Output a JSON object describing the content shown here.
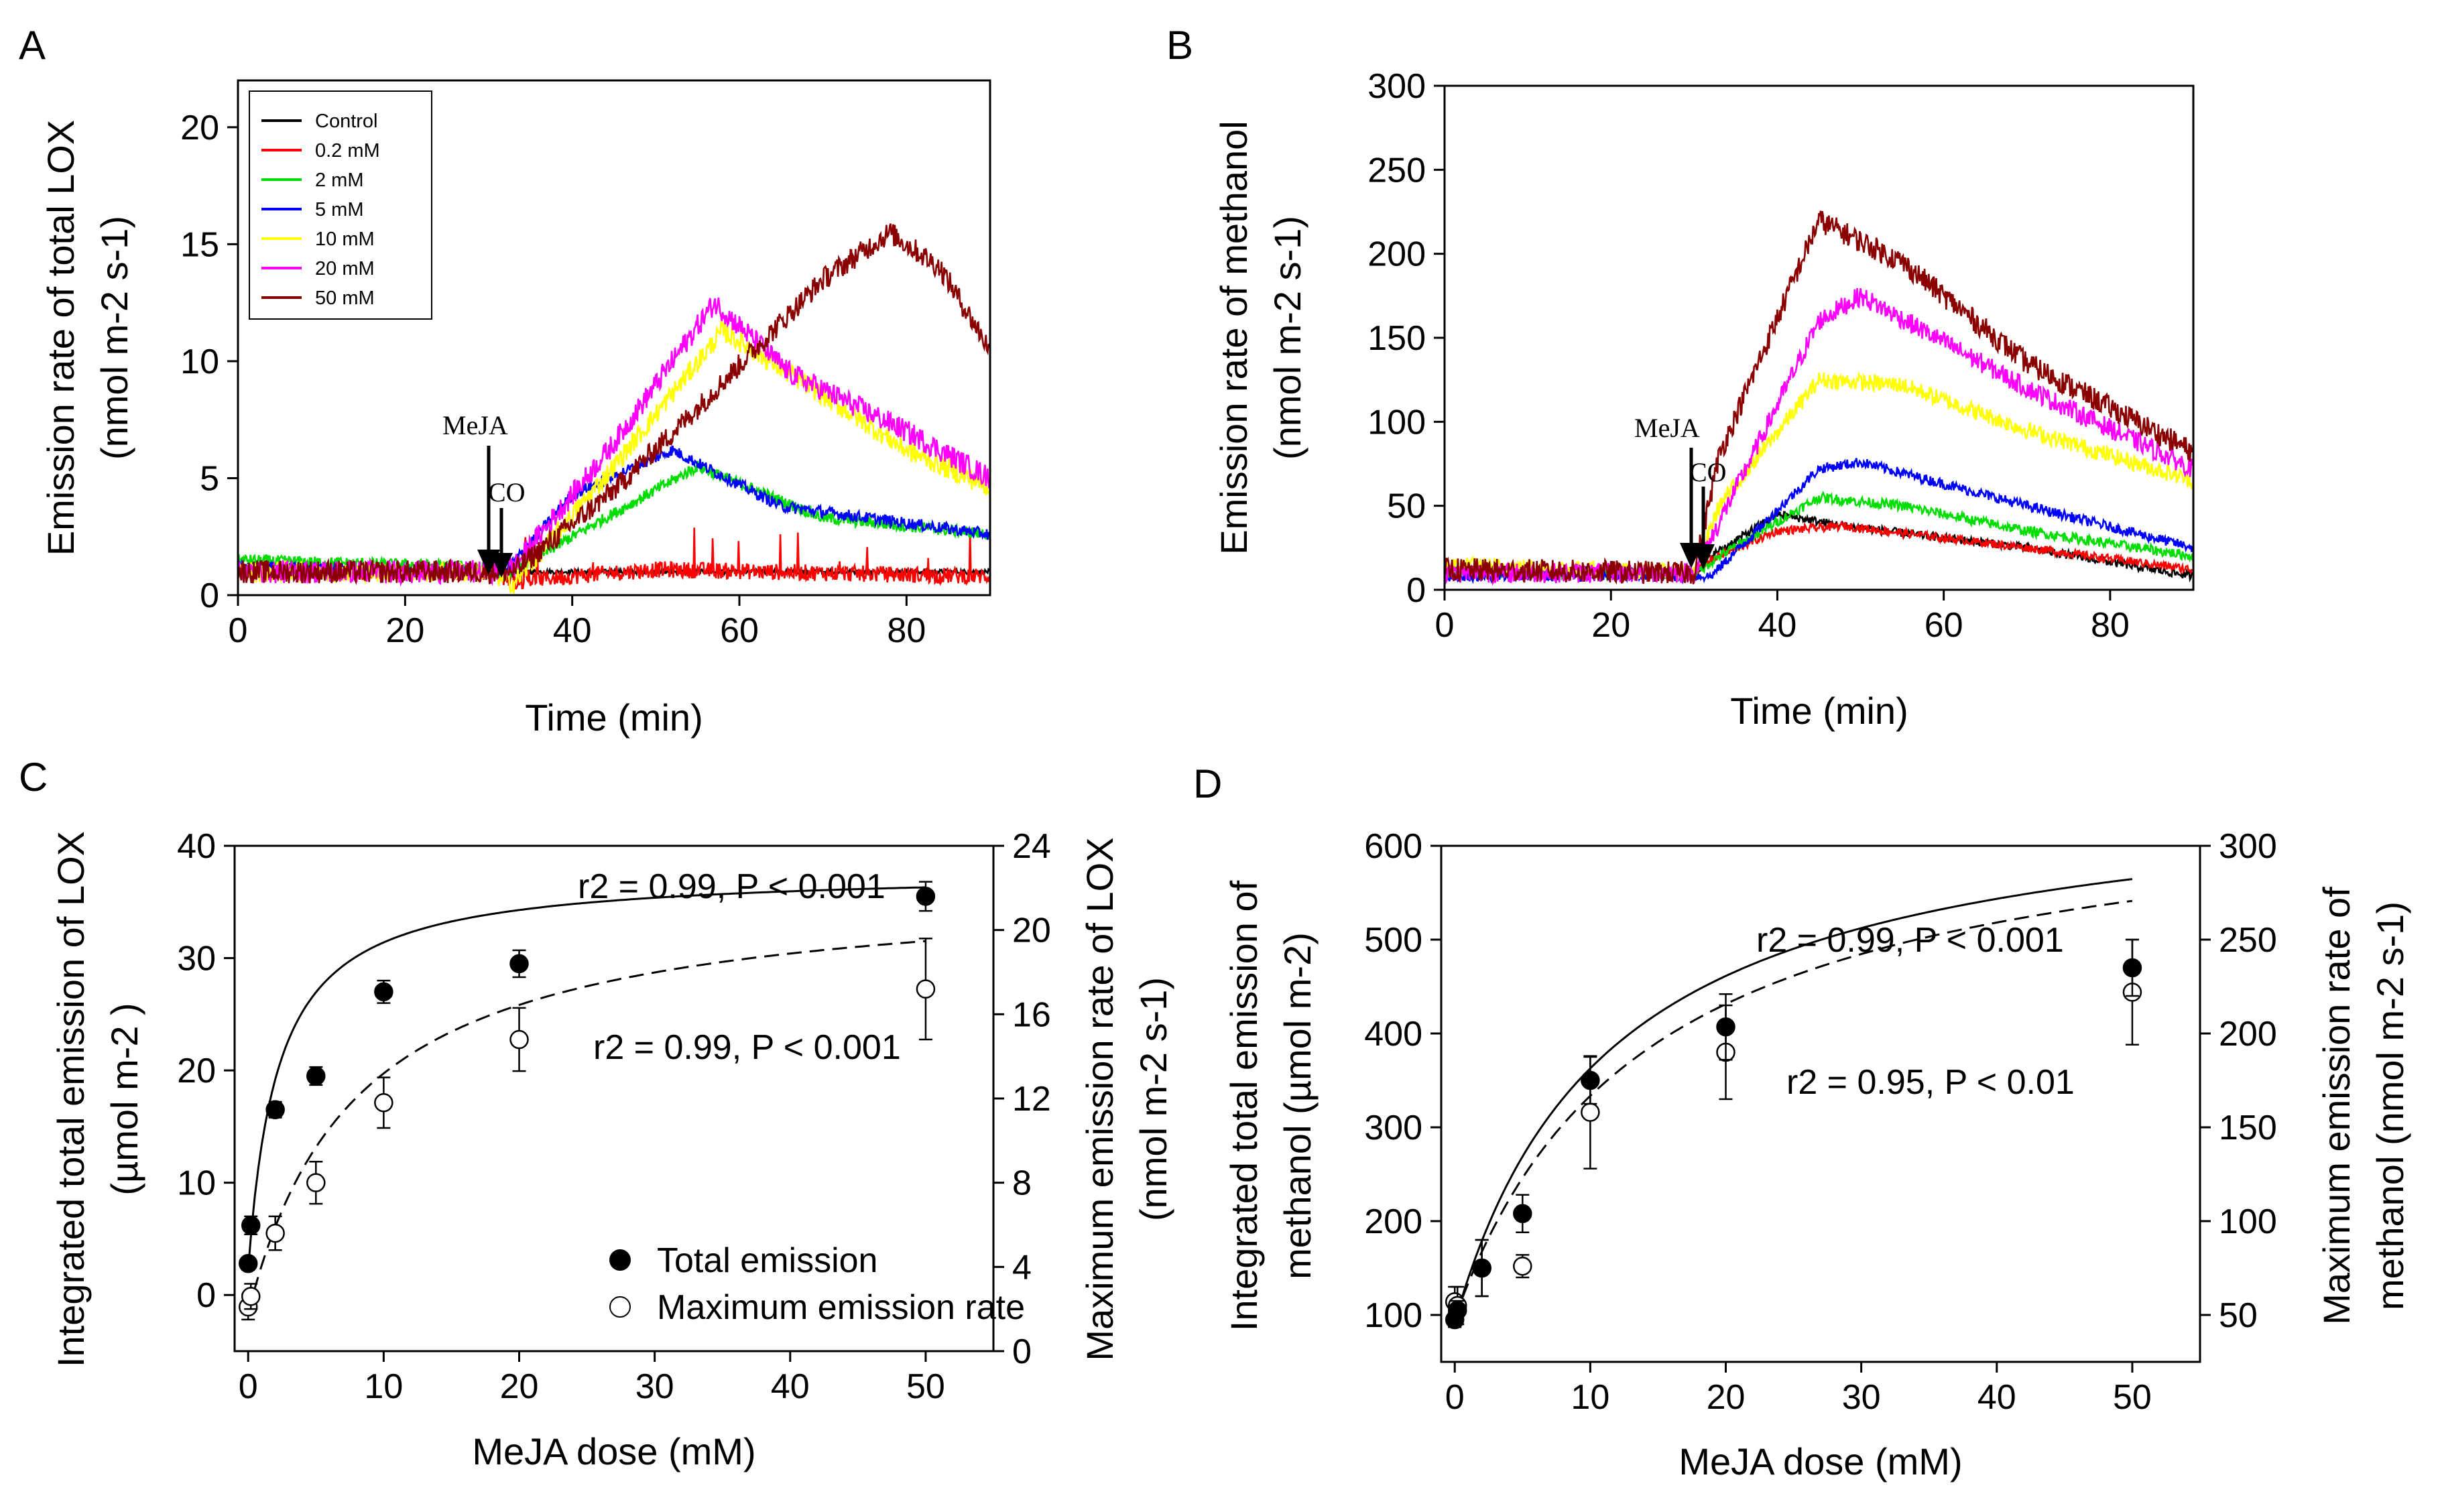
{
  "figure": {
    "colors": {
      "axis": "#000000",
      "background": "#ffffff"
    }
  },
  "chart_data": [
    {
      "panel": "A",
      "type": "line",
      "xlabel": "Time (min)",
      "ylabel_line1": "Emission rate of total LOX",
      "ylabel_line2": "(nmol m-2 s-1)",
      "xlim": [
        0,
        90
      ],
      "ylim": [
        0,
        22
      ],
      "xticks": [
        "0",
        "20",
        "40",
        "60",
        "80"
      ],
      "xtick_values": [
        0,
        20,
        40,
        60,
        80
      ],
      "yticks": [
        "0",
        "5",
        "10",
        "15",
        "20"
      ],
      "ytick_values": [
        0,
        5,
        10,
        15,
        20
      ],
      "annotations": {
        "meja": "MeJA",
        "co": "CO",
        "meja_x": 30,
        "co_x": 31.5
      },
      "legend": {
        "position": "top-left"
      },
      "series": [
        {
          "name": "Control",
          "color": "#000000",
          "noise": 0.1,
          "points": [
            [
              0,
              1.0
            ],
            [
              30,
              1.0
            ],
            [
              90,
              1.0
            ]
          ]
        },
        {
          "name": "0.2 mM",
          "color": "#ff0000",
          "noise": 0.35,
          "points": [
            [
              0,
              1.0
            ],
            [
              30,
              1.0
            ],
            [
              33,
              0.6
            ],
            [
              50,
              1.1
            ],
            [
              90,
              0.8
            ]
          ]
        },
        {
          "name": "2 mM",
          "color": "#00dd00",
          "noise": 0.25,
          "points": [
            [
              0,
              1.5
            ],
            [
              30,
              1.2
            ],
            [
              32,
              0.8
            ],
            [
              40,
              2.5
            ],
            [
              55,
              5.5
            ],
            [
              70,
              3.3
            ],
            [
              90,
              2.6
            ]
          ]
        },
        {
          "name": "5 mM",
          "color": "#0000ff",
          "noise": 0.25,
          "points": [
            [
              0,
              1.2
            ],
            [
              30,
              1.0
            ],
            [
              32,
              1.0
            ],
            [
              40,
              4.3
            ],
            [
              52,
              6.2
            ],
            [
              65,
              3.8
            ],
            [
              90,
              2.6
            ]
          ]
        },
        {
          "name": "10 mM",
          "color": "#ffff00",
          "noise": 0.45,
          "points": [
            [
              0,
              1.0
            ],
            [
              30,
              1.0
            ],
            [
              33,
              0.5
            ],
            [
              45,
              5.5
            ],
            [
              58,
              11.3
            ],
            [
              68,
              9.0
            ],
            [
              80,
              6.2
            ],
            [
              90,
              4.6
            ]
          ]
        },
        {
          "name": "20 mM",
          "color": "#ff00ff",
          "noise": 0.5,
          "points": [
            [
              0,
              1.0
            ],
            [
              30,
              1.0
            ],
            [
              33,
              1.2
            ],
            [
              45,
              6.5
            ],
            [
              57,
              12.5
            ],
            [
              66,
              9.5
            ],
            [
              80,
              7.0
            ],
            [
              90,
              5.0
            ]
          ]
        },
        {
          "name": "50 mM",
          "color": "#8b0000",
          "noise": 0.5,
          "points": [
            [
              0,
              1.0
            ],
            [
              30,
              1.0
            ],
            [
              33,
              1.0
            ],
            [
              45,
              4.5
            ],
            [
              55,
              8.0
            ],
            [
              70,
              13.5
            ],
            [
              78,
              15.5
            ],
            [
              84,
              14.0
            ],
            [
              90,
              10.5
            ]
          ]
        }
      ]
    },
    {
      "panel": "B",
      "type": "line",
      "xlabel": "Time (min)",
      "ylabel_line1": "Emission rate of methanol",
      "ylabel_line2": "(nmol m-2 s-1)",
      "xlim": [
        0,
        90
      ],
      "ylim": [
        0,
        300
      ],
      "xticks": [
        "0",
        "20",
        "40",
        "60",
        "80"
      ],
      "xtick_values": [
        0,
        20,
        40,
        60,
        80
      ],
      "yticks": [
        "0",
        "50",
        "100",
        "150",
        "200",
        "250",
        "300"
      ],
      "ytick_values": [
        0,
        50,
        100,
        150,
        200,
        250,
        300
      ],
      "annotations": {
        "meja": "MeJA",
        "co": "CO",
        "meja_x": 29.5,
        "co_x": 31
      },
      "series": [
        {
          "name": "Control",
          "color": "#000000",
          "noise": 2.5,
          "points": [
            [
              0,
              12
            ],
            [
              30,
              10
            ],
            [
              32,
              20
            ],
            [
              40,
              45
            ],
            [
              48,
              38
            ],
            [
              70,
              25
            ],
            [
              90,
              8
            ]
          ]
        },
        {
          "name": "0.2 mM",
          "color": "#ff0000",
          "noise": 2.5,
          "points": [
            [
              0,
              12
            ],
            [
              30,
              10
            ],
            [
              32,
              18
            ],
            [
              40,
              35
            ],
            [
              48,
              38
            ],
            [
              70,
              25
            ],
            [
              90,
              12
            ]
          ]
        },
        {
          "name": "2 mM",
          "color": "#00dd00",
          "noise": 3,
          "points": [
            [
              0,
              10
            ],
            [
              30,
              9
            ],
            [
              33,
              20
            ],
            [
              45,
              55
            ],
            [
              55,
              50
            ],
            [
              70,
              35
            ],
            [
              90,
              20
            ]
          ]
        },
        {
          "name": "5 mM",
          "color": "#0000ff",
          "noise": 3,
          "points": [
            [
              0,
              8
            ],
            [
              30,
              8
            ],
            [
              32,
              8
            ],
            [
              45,
              72
            ],
            [
              50,
              76
            ],
            [
              70,
              50
            ],
            [
              90,
              25
            ]
          ]
        },
        {
          "name": "10 mM",
          "color": "#ffff00",
          "noise": 5,
          "points": [
            [
              0,
              15
            ],
            [
              30,
              10
            ],
            [
              33,
              50
            ],
            [
              45,
              125
            ],
            [
              55,
              122
            ],
            [
              70,
              95
            ],
            [
              90,
              65
            ]
          ]
        },
        {
          "name": "20 mM",
          "color": "#ff00ff",
          "noise": 6,
          "points": [
            [
              0,
              10
            ],
            [
              30,
              10
            ],
            [
              33,
              40
            ],
            [
              45,
              160
            ],
            [
              50,
              175
            ],
            [
              70,
              120
            ],
            [
              90,
              72
            ]
          ]
        },
        {
          "name": "50 mM",
          "color": "#8b0000",
          "noise": 7,
          "points": [
            [
              0,
              12
            ],
            [
              30,
              10
            ],
            [
              33,
              80
            ],
            [
              45,
              220
            ],
            [
              55,
              195
            ],
            [
              70,
              135
            ],
            [
              90,
              82
            ]
          ]
        }
      ]
    },
    {
      "panel": "C",
      "type": "scatter",
      "xlabel": "MeJA dose (mM)",
      "ylabel_left_line1": "Integrated total emission of LOX",
      "ylabel_left_line2": "(µmol m-2 )",
      "ylabel_right_line1": "Maximum emission rate of LOX",
      "ylabel_right_line2": "(nmol m-2 s-1)",
      "xlim": [
        -1,
        55
      ],
      "ylim_left": [
        -5,
        40
      ],
      "ylim_right": [
        0,
        24
      ],
      "xticks": [
        "0",
        "10",
        "20",
        "30",
        "40",
        "50"
      ],
      "xtick_values": [
        0,
        10,
        20,
        30,
        40,
        50
      ],
      "yticks_left": [
        "0",
        "10",
        "20",
        "30",
        "40"
      ],
      "ytick_left_values": [
        0,
        10,
        20,
        30,
        40
      ],
      "yticks_right": [
        "0",
        "4",
        "8",
        "12",
        "16",
        "20",
        "24"
      ],
      "ytick_right_values": [
        0,
        4,
        8,
        12,
        16,
        20,
        24
      ],
      "legend": {
        "total": "Total emission",
        "max": "Maximum emission rate",
        "position": "bottom-right"
      },
      "stats_total": "r2 = 0.99, P < 0.001",
      "stats_max": "r2 = 0.99, P < 0.001",
      "total_emission": {
        "x": [
          0,
          0.2,
          2,
          5,
          10,
          20,
          50
        ],
        "y": [
          2.8,
          6.2,
          16.5,
          19.5,
          27,
          29.5,
          35.5
        ],
        "err": [
          0.5,
          0.8,
          0.7,
          0.8,
          1.0,
          1.2,
          1.3
        ]
      },
      "max_rate": {
        "x": [
          0,
          0.2,
          2,
          5,
          10,
          20,
          50
        ],
        "y": [
          2.1,
          2.6,
          5.6,
          8.0,
          11.8,
          14.8,
          17.2
        ],
        "err": [
          0.6,
          0.6,
          0.8,
          1.0,
          1.2,
          1.5,
          2.4
        ]
      },
      "fit_total": {
        "a": 35.5,
        "b": 2.2,
        "c": 2.3
      },
      "fit_max": {
        "a": 20.5,
        "b": 8.0,
        "c": 1.8
      }
    },
    {
      "panel": "D",
      "type": "scatter",
      "xlabel": "MeJA dose (mM)",
      "ylabel_left_line1": "Integrated total emission of",
      "ylabel_left_line2": "methanol (µmol m-2)",
      "ylabel_right_line1": "Maximum emission rate of",
      "ylabel_right_line2": "methanol (nmol m-2 s-1)",
      "xlim": [
        -1,
        55
      ],
      "ylim_left": [
        50,
        600
      ],
      "ylim_right": [
        25,
        300
      ],
      "xticks": [
        "0",
        "10",
        "20",
        "30",
        "40",
        "50"
      ],
      "xtick_values": [
        0,
        10,
        20,
        30,
        40,
        50
      ],
      "yticks_left": [
        "100",
        "200",
        "300",
        "400",
        "500",
        "600"
      ],
      "ytick_left_values": [
        100,
        200,
        300,
        400,
        500,
        600
      ],
      "yticks_right": [
        "50",
        "100",
        "150",
        "200",
        "250",
        "300"
      ],
      "ytick_right_values": [
        50,
        100,
        150,
        200,
        250,
        300
      ],
      "stats_total": "r2 = 0.99, P < 0.001",
      "stats_max": "r2 = 0.95, P < 0.01",
      "total_emission": {
        "x": [
          0,
          0.2,
          2,
          5,
          10,
          20,
          50
        ],
        "y": [
          95,
          105,
          150,
          208,
          350,
          407,
          470
        ],
        "err": [
          8,
          10,
          30,
          20,
          25,
          35,
          30
        ]
      },
      "max_rate": {
        "x": [
          0,
          0.2,
          2,
          5,
          10,
          20,
          50
        ],
        "y": [
          57,
          55,
          75,
          76,
          158,
          190,
          222
        ],
        "err": [
          8,
          10,
          15,
          6,
          30,
          25,
          28
        ]
      },
      "fit_total": {
        "a": 580,
        "b": 11.5,
        "c": 93
      },
      "fit_max": {
        "a": 285,
        "b": 14,
        "c": 48
      }
    }
  ]
}
